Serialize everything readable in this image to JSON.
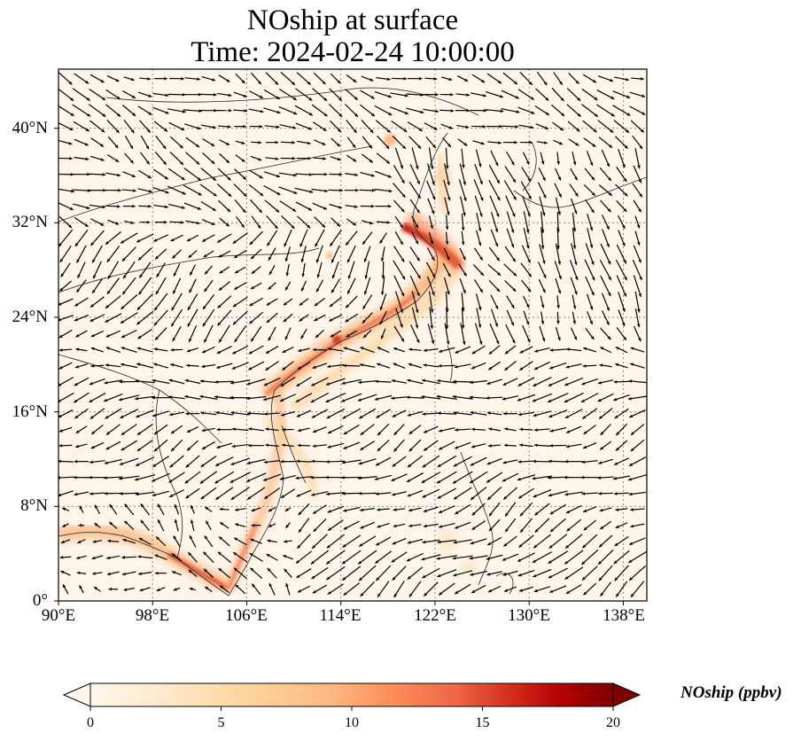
{
  "title": {
    "line1": "NOship at surface",
    "line2": "Time: 2024-02-24 10:00:00"
  },
  "map": {
    "projection": "PlateCarree",
    "lon_range": [
      90,
      140
    ],
    "lat_range": [
      0,
      45
    ],
    "gridlines": "dotted",
    "background_color": "#fff5eb",
    "x_ticks": [
      {
        "value": 90,
        "label": "90°E"
      },
      {
        "value": 98,
        "label": "98°E"
      },
      {
        "value": 106,
        "label": "106°E"
      },
      {
        "value": 114,
        "label": "114°E"
      },
      {
        "value": 122,
        "label": "122°E"
      },
      {
        "value": 130,
        "label": "130°E"
      },
      {
        "value": 138,
        "label": "138°E"
      }
    ],
    "y_ticks": [
      {
        "value": 0,
        "label": "0°"
      },
      {
        "value": 8,
        "label": "8°N"
      },
      {
        "value": 16,
        "label": "16°N"
      },
      {
        "value": 24,
        "label": "24°N"
      },
      {
        "value": 32,
        "label": "32°N"
      },
      {
        "value": 40,
        "label": "40°N"
      }
    ]
  },
  "colorbar": {
    "label": "NOship (ppbv)",
    "colormap": "OrRd",
    "range": [
      0,
      20
    ],
    "extend": "both",
    "ticks": [
      "0",
      "5",
      "10",
      "15",
      "20"
    ],
    "colors": [
      "#fff7ec",
      "#fee8c8",
      "#fdd49e",
      "#fdbb84",
      "#fc8d59",
      "#ef6548",
      "#d7301f",
      "#b30000",
      "#7f0000"
    ]
  },
  "legend": {}
}
